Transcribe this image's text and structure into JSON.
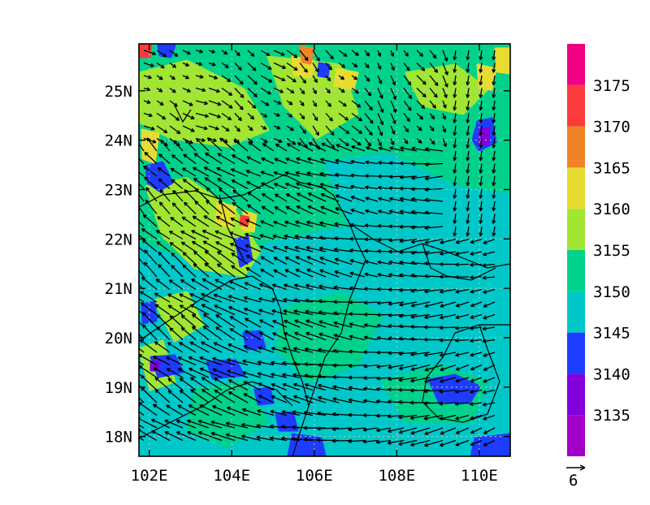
{
  "map": {
    "lon_ticks": [
      "102E",
      "104E",
      "106E",
      "108E",
      "110E"
    ],
    "lat_ticks": [
      "18N",
      "19N",
      "20N",
      "21N",
      "22N",
      "23N",
      "24N",
      "25N"
    ],
    "lon_values": [
      102,
      104,
      106,
      108,
      110
    ],
    "lat_values": [
      18,
      19,
      20,
      21,
      22,
      23,
      24,
      25
    ],
    "lon_range": [
      101.75,
      110.75
    ],
    "lat_range": [
      17.6,
      25.95
    ]
  },
  "colorbar": {
    "levels": [
      "3135",
      "3140",
      "3145",
      "3150",
      "3155",
      "3160",
      "3165",
      "3170",
      "3175"
    ],
    "colors": [
      "#a000c8",
      "#8200dc",
      "#1e3cff",
      "#00c8c8",
      "#00d28c",
      "#a0e632",
      "#e6dc32",
      "#f08228",
      "#fa3c3c",
      "#f00082"
    ]
  },
  "vector_reference": {
    "label": "6"
  }
}
